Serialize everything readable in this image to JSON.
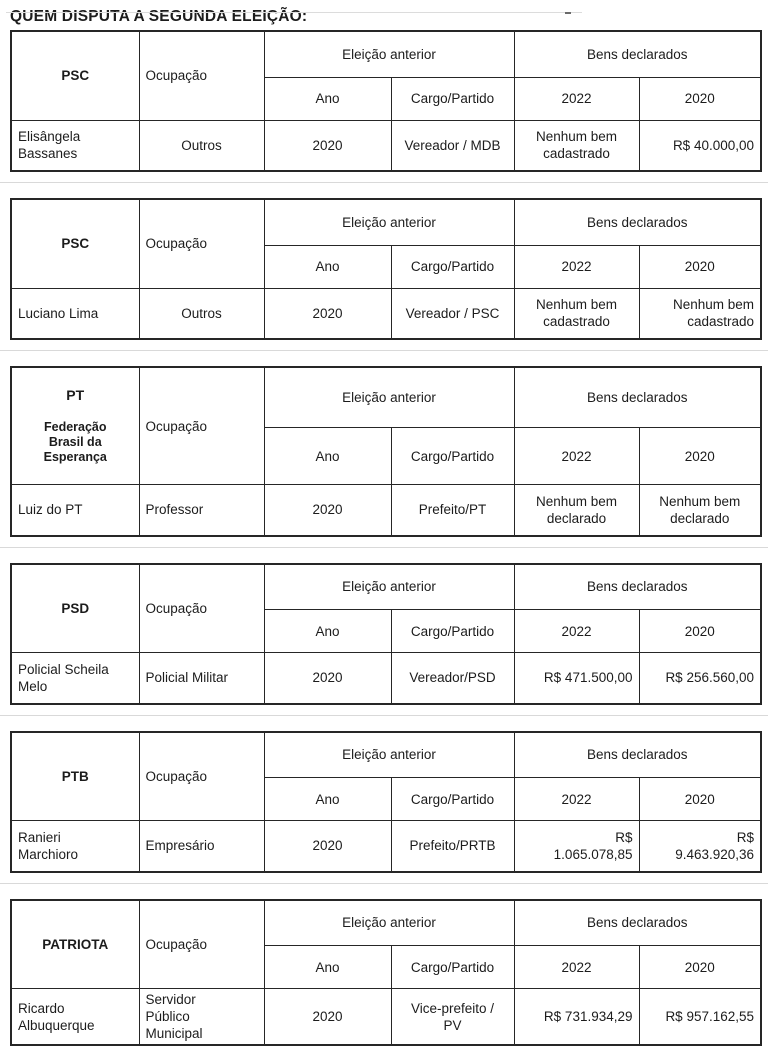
{
  "page": {
    "title": "QUEM DISPUTA A SEGUNDA ELEIÇÃO:"
  },
  "labels": {
    "ocupacao": "Ocupação",
    "eleicao_anterior": "Eleição anterior",
    "bens_declarados": "Bens declarados",
    "ano": "Ano",
    "cargo_partido": "Cargo/Partido",
    "y2022": "2022",
    "y2020": "2020"
  },
  "tables": [
    {
      "party": "PSC",
      "candidate": "Elisângela\nBassanes",
      "occupation": "Outros",
      "year": "2020",
      "office": "Vereador / MDB",
      "assets_2022": "Nenhum bem\ncadastrado",
      "assets_2020": "R$ 40.000,00"
    },
    {
      "party": "PSC",
      "candidate": "Luciano Lima",
      "occupation": "Outros",
      "year": "2020",
      "office": "Vereador / PSC",
      "assets_2022": "Nenhum bem\ncadastrado",
      "assets_2020": "Nenhum bem\ncadastrado"
    },
    {
      "party": "PT",
      "party_sub": "Federação\nBrasil da\nEsperança",
      "candidate": "Luiz do PT",
      "occupation": "Professor",
      "year": "2020",
      "office": "Prefeito/PT",
      "assets_2022": "Nenhum bem\ndeclarado",
      "assets_2020": "Nenhum bem\ndeclarado"
    },
    {
      "party": "PSD",
      "candidate": "Policial Scheila\nMelo",
      "occupation": "Policial Militar",
      "year": "2020",
      "office": "Vereador/PSD",
      "assets_2022": "R$ 471.500,00",
      "assets_2020": "R$ 256.560,00"
    },
    {
      "party": "PTB",
      "candidate": "Ranieri\nMarchioro",
      "occupation": "Empresário",
      "year": "2020",
      "office": "Prefeito/PRTB",
      "assets_2022": "R$\n1.065.078,85",
      "assets_2020": "R$\n9.463.920,36"
    },
    {
      "party": "PATRIOTA",
      "candidate": "Ricardo\nAlbuquerque",
      "occupation": "Servidor\nPúblico\nMunicipal",
      "year": "2020",
      "office": "Vice-prefeito /\nPV",
      "assets_2022": "R$ 731.934,29",
      "assets_2020": "R$ 957.162,55"
    }
  ]
}
